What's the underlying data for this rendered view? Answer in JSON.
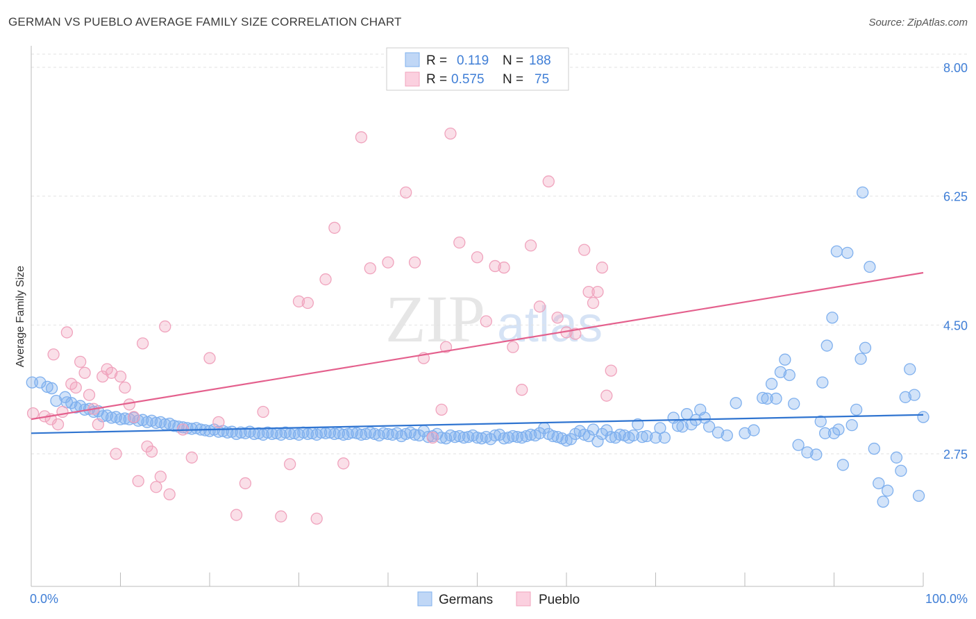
{
  "header": {
    "title": "GERMAN VS PUEBLO AVERAGE FAMILY SIZE CORRELATION CHART",
    "source": "Source: ZipAtlas.com"
  },
  "watermark": {
    "zip": "ZIP",
    "atlas": "atlas"
  },
  "legend": {
    "r_label": "R =",
    "n_label": "N =",
    "rows": [
      {
        "name": "Germans",
        "r": "0.119",
        "n": "188",
        "color": "#7fb0ee"
      },
      {
        "name": "Pueblo",
        "r": "0.575",
        "n": "75",
        "color": "#f0a3bd"
      }
    ]
  },
  "chart_data": {
    "type": "scatter",
    "title": "GERMAN VS PUEBLO AVERAGE FAMILY SIZE CORRELATION CHART",
    "xlabel": "",
    "ylabel": "Average Family Size",
    "xlim": [
      0,
      100
    ],
    "ylim": [
      1.3,
      8.3
    ],
    "x_tick_labels": [
      "0.0%",
      "100.0%"
    ],
    "y_ticks": [
      2.75,
      4.5,
      6.25,
      8.0
    ],
    "y_tick_labels": [
      "2.75",
      "4.50",
      "6.25",
      "8.00"
    ],
    "grid": true,
    "series": [
      {
        "name": "Germans",
        "color": "#7fb0ee",
        "line_color": "#2f74d0",
        "trend": [
          [
            0,
            3.03
          ],
          [
            100,
            3.28
          ]
        ],
        "points": [
          [
            0.1,
            3.72
          ],
          [
            1,
            3.72
          ],
          [
            1.8,
            3.66
          ],
          [
            2.3,
            3.64
          ],
          [
            2.8,
            3.47
          ],
          [
            3.8,
            3.52
          ],
          [
            4,
            3.45
          ],
          [
            4.5,
            3.44
          ],
          [
            5,
            3.38
          ],
          [
            5.5,
            3.4
          ],
          [
            6,
            3.35
          ],
          [
            6.5,
            3.36
          ],
          [
            7,
            3.32
          ],
          [
            7.5,
            3.33
          ],
          [
            8,
            3.26
          ],
          [
            8.5,
            3.27
          ],
          [
            9,
            3.24
          ],
          [
            9.5,
            3.25
          ],
          [
            10,
            3.22
          ],
          [
            10.5,
            3.23
          ],
          [
            11,
            3.22
          ],
          [
            11.5,
            3.24
          ],
          [
            12,
            3.2
          ],
          [
            12.5,
            3.21
          ],
          [
            13,
            3.18
          ],
          [
            13.5,
            3.2
          ],
          [
            14,
            3.17
          ],
          [
            14.5,
            3.18
          ],
          [
            15,
            3.15
          ],
          [
            15.5,
            3.16
          ],
          [
            16,
            3.13
          ],
          [
            16.5,
            3.12
          ],
          [
            17,
            3.11
          ],
          [
            17.5,
            3.1
          ],
          [
            18,
            3.09
          ],
          [
            18.5,
            3.1
          ],
          [
            19,
            3.08
          ],
          [
            19.5,
            3.07
          ],
          [
            20,
            3.06
          ],
          [
            20.5,
            3.08
          ],
          [
            21,
            3.05
          ],
          [
            21.5,
            3.06
          ],
          [
            22,
            3.04
          ],
          [
            22.5,
            3.05
          ],
          [
            23,
            3.02
          ],
          [
            23.5,
            3.04
          ],
          [
            24,
            3.03
          ],
          [
            24.5,
            3.05
          ],
          [
            25,
            3.02
          ],
          [
            25.5,
            3.03
          ],
          [
            26,
            3.01
          ],
          [
            26.5,
            3.04
          ],
          [
            27,
            3.02
          ],
          [
            27.5,
            3.03
          ],
          [
            28,
            3.01
          ],
          [
            28.5,
            3.04
          ],
          [
            29,
            3.02
          ],
          [
            29.5,
            3.03
          ],
          [
            30,
            3.01
          ],
          [
            30.5,
            3.04
          ],
          [
            31,
            3.02
          ],
          [
            31.5,
            3.03
          ],
          [
            32,
            3.01
          ],
          [
            32.5,
            3.04
          ],
          [
            33,
            3.03
          ],
          [
            33.5,
            3.04
          ],
          [
            34,
            3.02
          ],
          [
            34.5,
            3.03
          ],
          [
            35,
            3.01
          ],
          [
            35.5,
            3.02
          ],
          [
            36,
            3.04
          ],
          [
            36.5,
            3.03
          ],
          [
            37,
            3.01
          ],
          [
            37.5,
            3.02
          ],
          [
            38,
            3.04
          ],
          [
            38.5,
            3.02
          ],
          [
            39,
            3.0
          ],
          [
            39.5,
            3.03
          ],
          [
            40,
            3.02
          ],
          [
            40.5,
            3.01
          ],
          [
            41,
            3.03
          ],
          [
            41.5,
            2.99
          ],
          [
            42,
            3.02
          ],
          [
            42.5,
            3.04
          ],
          [
            43,
            3.01
          ],
          [
            43.5,
            3.0
          ],
          [
            44,
            3.06
          ],
          [
            44.5,
            2.98
          ],
          [
            45,
            2.99
          ],
          [
            45.5,
            3.02
          ],
          [
            46,
            2.97
          ],
          [
            46.5,
            2.96
          ],
          [
            47,
            3.0
          ],
          [
            47.5,
            2.98
          ],
          [
            48,
            2.99
          ],
          [
            48.5,
            2.97
          ],
          [
            49,
            2.98
          ],
          [
            49.5,
            3.0
          ],
          [
            50,
            2.97
          ],
          [
            50.5,
            2.96
          ],
          [
            51,
            2.98
          ],
          [
            51.5,
            2.95
          ],
          [
            52,
            3.0
          ],
          [
            52.5,
            3.01
          ],
          [
            53,
            2.96
          ],
          [
            53.5,
            2.97
          ],
          [
            54,
            2.99
          ],
          [
            54.5,
            2.98
          ],
          [
            55,
            2.97
          ],
          [
            55.5,
            2.99
          ],
          [
            56,
            3.01
          ],
          [
            56.5,
            3.0
          ],
          [
            57,
            3.03
          ],
          [
            57.5,
            3.1
          ],
          [
            58,
            3.02
          ],
          [
            58.5,
            2.99
          ],
          [
            59,
            2.98
          ],
          [
            59.5,
            2.96
          ],
          [
            60,
            2.93
          ],
          [
            60.5,
            2.95
          ],
          [
            61,
            3.02
          ],
          [
            61.5,
            3.06
          ],
          [
            62,
            3.01
          ],
          [
            62.5,
            2.99
          ],
          [
            63,
            3.08
          ],
          [
            63.5,
            2.92
          ],
          [
            64,
            3.02
          ],
          [
            64.5,
            3.07
          ],
          [
            65,
            2.98
          ],
          [
            65.5,
            2.97
          ],
          [
            66,
            3.01
          ],
          [
            66.5,
            3.0
          ],
          [
            67,
            2.97
          ],
          [
            67.5,
            3.0
          ],
          [
            68,
            3.15
          ],
          [
            68.5,
            2.98
          ],
          [
            69,
            2.99
          ],
          [
            70,
            2.97
          ],
          [
            70.5,
            3.1
          ],
          [
            71,
            2.97
          ],
          [
            72,
            3.24
          ],
          [
            72.5,
            3.13
          ],
          [
            73,
            3.12
          ],
          [
            73.5,
            3.29
          ],
          [
            74,
            3.15
          ],
          [
            74.5,
            3.21
          ],
          [
            75,
            3.35
          ],
          [
            75.5,
            3.24
          ],
          [
            76,
            3.12
          ],
          [
            77,
            3.04
          ],
          [
            78,
            3.0
          ],
          [
            79,
            3.44
          ],
          [
            80,
            3.03
          ],
          [
            81,
            3.07
          ],
          [
            82,
            3.51
          ],
          [
            82.5,
            3.5
          ],
          [
            83,
            3.7
          ],
          [
            83.5,
            3.5
          ],
          [
            84,
            3.86
          ],
          [
            84.5,
            4.03
          ],
          [
            85,
            3.82
          ],
          [
            85.5,
            3.43
          ],
          [
            86,
            2.87
          ],
          [
            87,
            2.77
          ],
          [
            88,
            2.74
          ],
          [
            88.5,
            3.19
          ],
          [
            89,
            3.03
          ],
          [
            90,
            3.03
          ],
          [
            90.5,
            3.08
          ],
          [
            91,
            2.6
          ],
          [
            92,
            3.14
          ],
          [
            92.5,
            3.35
          ],
          [
            93,
            4.04
          ],
          [
            93.5,
            4.19
          ],
          [
            94,
            5.29
          ],
          [
            94.5,
            2.82
          ],
          [
            95,
            2.35
          ],
          [
            95.5,
            2.1
          ],
          [
            96,
            2.25
          ],
          [
            97,
            2.7
          ],
          [
            97.5,
            2.52
          ],
          [
            98,
            3.52
          ],
          [
            98.5,
            3.9
          ],
          [
            99,
            3.55
          ],
          [
            99.5,
            2.18
          ],
          [
            100,
            3.25
          ],
          [
            88.7,
            3.72
          ],
          [
            89.2,
            4.22
          ],
          [
            89.8,
            4.6
          ],
          [
            90.3,
            5.5
          ],
          [
            91.5,
            5.48
          ],
          [
            93.2,
            6.3
          ]
        ]
      },
      {
        "name": "Pueblo",
        "color": "#f0a3bd",
        "line_color": "#e4608d",
        "trend": [
          [
            0,
            3.22
          ],
          [
            100,
            5.21
          ]
        ],
        "points": [
          [
            0.2,
            3.3
          ],
          [
            1.5,
            3.26
          ],
          [
            2.2,
            3.22
          ],
          [
            2.5,
            4.1
          ],
          [
            3,
            3.15
          ],
          [
            3.5,
            3.32
          ],
          [
            4,
            4.4
          ],
          [
            4.5,
            3.7
          ],
          [
            5,
            3.65
          ],
          [
            5.5,
            4.0
          ],
          [
            6,
            3.85
          ],
          [
            6.5,
            3.55
          ],
          [
            7,
            3.36
          ],
          [
            7.5,
            3.15
          ],
          [
            8,
            3.8
          ],
          [
            8.5,
            3.9
          ],
          [
            9,
            3.85
          ],
          [
            9.5,
            2.75
          ],
          [
            10,
            3.8
          ],
          [
            10.5,
            3.65
          ],
          [
            11,
            3.42
          ],
          [
            11.5,
            3.25
          ],
          [
            12,
            2.38
          ],
          [
            12.5,
            4.25
          ],
          [
            13,
            2.85
          ],
          [
            13.5,
            2.78
          ],
          [
            14,
            2.3
          ],
          [
            14.5,
            2.44
          ],
          [
            15,
            4.48
          ],
          [
            15.5,
            2.2
          ],
          [
            17,
            3.08
          ],
          [
            18,
            2.7
          ],
          [
            20,
            4.05
          ],
          [
            21,
            3.18
          ],
          [
            23,
            1.92
          ],
          [
            24,
            2.35
          ],
          [
            26,
            3.32
          ],
          [
            28,
            1.9
          ],
          [
            29,
            2.61
          ],
          [
            30,
            4.82
          ],
          [
            31,
            4.8
          ],
          [
            32,
            1.87
          ],
          [
            33,
            5.12
          ],
          [
            34,
            5.82
          ],
          [
            35,
            2.62
          ],
          [
            37,
            7.05
          ],
          [
            38,
            5.27
          ],
          [
            40,
            5.35
          ],
          [
            42,
            6.3
          ],
          [
            43,
            5.35
          ],
          [
            44,
            4.05
          ],
          [
            45,
            2.97
          ],
          [
            46,
            3.35
          ],
          [
            47,
            7.1
          ],
          [
            48,
            5.62
          ],
          [
            50,
            5.42
          ],
          [
            51,
            4.55
          ],
          [
            52,
            5.3
          ],
          [
            53,
            5.28
          ],
          [
            54,
            4.2
          ],
          [
            55,
            3.62
          ],
          [
            56,
            5.58
          ],
          [
            57,
            4.75
          ],
          [
            58,
            6.45
          ],
          [
            59,
            4.6
          ],
          [
            60,
            4.4
          ],
          [
            61,
            4.38
          ],
          [
            62,
            5.52
          ],
          [
            62.5,
            4.95
          ],
          [
            63,
            4.8
          ],
          [
            63.5,
            4.95
          ],
          [
            64,
            5.28
          ],
          [
            64.5,
            3.54
          ],
          [
            65,
            3.88
          ],
          [
            46.5,
            4.2
          ]
        ]
      }
    ]
  },
  "bottom_legend": [
    {
      "label": "Germans",
      "color": "#7fb0ee"
    },
    {
      "label": "Pueblo",
      "color": "#f0a3bd"
    }
  ]
}
